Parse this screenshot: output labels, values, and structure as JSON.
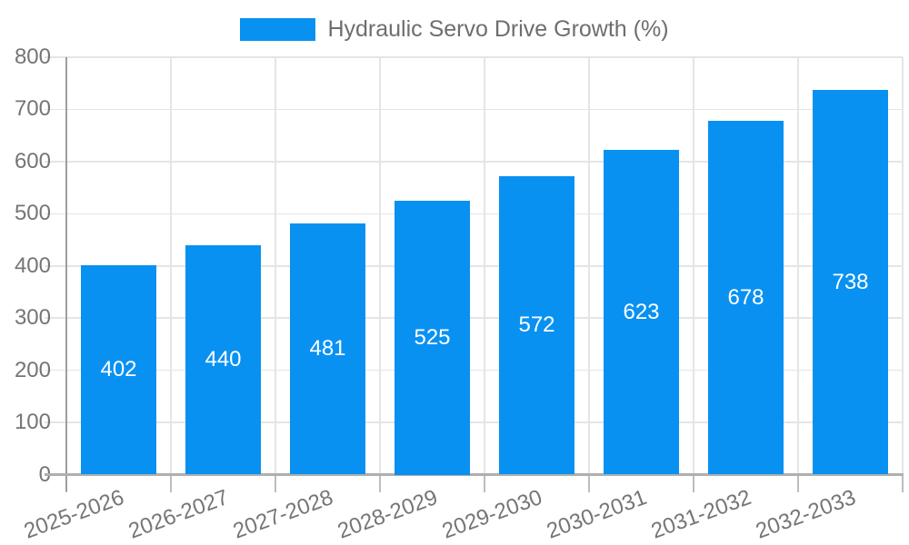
{
  "legend": {
    "label": "Hydraulic Servo Drive Growth (%)"
  },
  "chart_data": {
    "type": "bar",
    "title": "Hydraulic Servo Drive Growth (%)",
    "categories": [
      "2025-2026",
      "2026-2027",
      "2027-2028",
      "2028-2029",
      "2029-2030",
      "2030-2031",
      "2031-2032",
      "2032-2033"
    ],
    "values": [
      402,
      440,
      481,
      525,
      572,
      623,
      678,
      738
    ],
    "xlabel": "",
    "ylabel": "",
    "ylim": [
      0,
      800
    ],
    "yticks": [
      0,
      100,
      200,
      300,
      400,
      500,
      600,
      700,
      800
    ],
    "grid": true,
    "legend_position": "top-center",
    "value_labels": "inside-center",
    "xtick_rotation_deg": -20,
    "colors": {
      "bar": "#0991F2",
      "value_label": "#FFFFFF",
      "axis_line": "#9E9E9E",
      "baseline": "#AFAFAF",
      "gridline": "#E5E5E5",
      "tick": "#BDBDBD",
      "axis_text": "#757575",
      "legend_text": "#6E6E6E",
      "background": "#FFFFFF"
    }
  }
}
